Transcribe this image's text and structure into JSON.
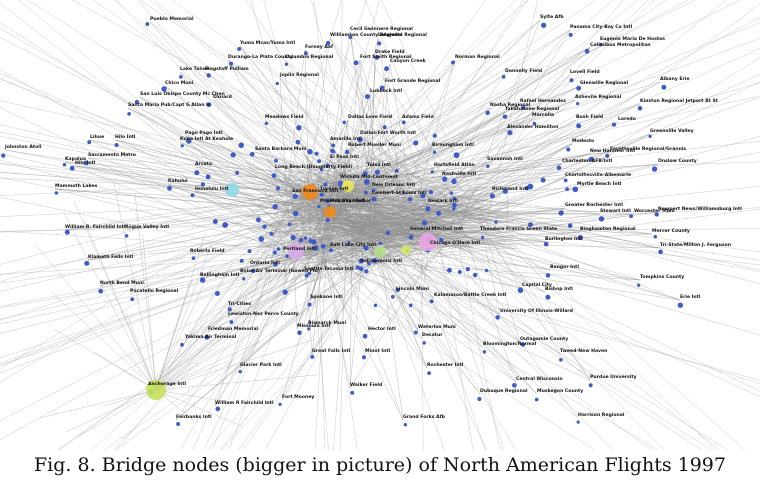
{
  "caption": "Fig. 8.  Bridge nodes (bigger in picture) of North American Flights 1997",
  "labels": [
    {
      "t": "Pueblo Memorial"
    },
    {
      "t": "Yuma Mcas/Yuma Intl"
    },
    {
      "t": "Durango-La Plata County"
    },
    {
      "t": "Columbia Regional"
    },
    {
      "t": "Forney Aaf"
    },
    {
      "t": "Williamson County Regional"
    },
    {
      "t": "Cecil Gwinnere Regional"
    },
    {
      "t": "Lafayette Regional"
    },
    {
      "t": "Drake Field"
    },
    {
      "t": "Fort Smith Regional"
    },
    {
      "t": "Canyon Creek"
    },
    {
      "t": "Norman Regional"
    },
    {
      "t": "Tallahassee Regional"
    },
    {
      "t": "Sylte Afb"
    },
    {
      "t": "Panama City-Bay Co Intl"
    },
    {
      "t": "Eugenio Maria De Hostos"
    },
    {
      "t": "Colonibus Metropolitan"
    },
    {
      "t": "Lake Tahoe"
    },
    {
      "t": "Flagstaff Pulliam"
    },
    {
      "t": "Joplin Regional"
    },
    {
      "t": "Donnelly Field"
    },
    {
      "t": "Lovell Field"
    },
    {
      "t": "Glenwille Regional"
    },
    {
      "t": "Albany Erie"
    },
    {
      "t": "Chico Muni"
    },
    {
      "t": "San Luis Obispo County Mc Chen"
    },
    {
      "t": "Santa Maria Pub/Capt G Allan H"
    },
    {
      "t": "Oxnard"
    },
    {
      "t": "Lubbock Intl"
    },
    {
      "t": "Fort Grande Regional"
    },
    {
      "t": "Rafael Hernandez"
    },
    {
      "t": "Ashevile Regional"
    },
    {
      "t": "Kinston Regional Jetport At St"
    },
    {
      "t": "Nasha Regional"
    },
    {
      "t": "Meadows Field"
    },
    {
      "t": "Dallas Love Field"
    },
    {
      "t": "Adams Field"
    },
    {
      "t": "Marcella"
    },
    {
      "t": "Bush Field"
    },
    {
      "t": "Modesto"
    },
    {
      "t": "Laredo"
    },
    {
      "t": "Johnston Atoll"
    },
    {
      "t": "Fayetteville Regional/Grannis"
    },
    {
      "t": "Pago Pago Intl"
    },
    {
      "t": "Hilo Intl"
    },
    {
      "t": "Kona Intl At Keahole"
    },
    {
      "t": "Dallas/Fort Worth Intl"
    },
    {
      "t": "Alexander Hamilton"
    },
    {
      "t": "Greenville Valley"
    },
    {
      "t": "Lihue"
    },
    {
      "t": "Santa Barbara Muni"
    },
    {
      "t": "Amarillo Intl"
    },
    {
      "t": "Robert Mueller Muni"
    },
    {
      "t": "Birmingham Intl"
    },
    {
      "t": "Savannah Intl"
    },
    {
      "t": "Kapalua"
    },
    {
      "t": "Sacramento Metro"
    },
    {
      "t": "Arcata"
    },
    {
      "t": "Tulsa Intl"
    },
    {
      "t": "El Paso Intl"
    },
    {
      "t": "Hartsfield Atlan"
    },
    {
      "t": "Nashville Intl"
    },
    {
      "t": "New Hanover Intl"
    },
    {
      "t": "Hilo Intl"
    },
    {
      "t": "Kahului"
    },
    {
      "t": "Long Beach (Daugherty Field)"
    },
    {
      "t": "Wichita Mid-Continent"
    },
    {
      "t": "Charleston AFB/Intl"
    },
    {
      "t": "Onslow County"
    },
    {
      "t": "Mammoth Lakes"
    },
    {
      "t": "Honolulu Intl"
    },
    {
      "t": "San Francisco Intl"
    },
    {
      "t": "Tucson Intl"
    },
    {
      "t": "Phoenix Sky Harbor"
    },
    {
      "t": "New Orleans Intl"
    },
    {
      "t": "Lambert-St Louis Intl"
    },
    {
      "t": "Richmond Intl"
    },
    {
      "t": "Myrtle Beach Intl"
    },
    {
      "t": "Charlottesville-Albemarle"
    },
    {
      "t": "McCarran Intl"
    },
    {
      "t": "Newark Intl"
    },
    {
      "t": "Greater Rochester Intl"
    },
    {
      "t": "Stewart Intl"
    },
    {
      "t": "Worcester Muni"
    },
    {
      "t": "Newport News/Williamsburg Intl"
    },
    {
      "t": "William R. Fairchild Intl"
    },
    {
      "t": "Rogue Valley Intl"
    },
    {
      "t": "Portland Intl"
    },
    {
      "t": "Salt Lake City Intl"
    },
    {
      "t": "General Mitchell Intl"
    },
    {
      "t": "Theodore Francis Green State"
    },
    {
      "t": "Binghamton Regional"
    },
    {
      "t": "Mercer County"
    },
    {
      "t": "Klamath Falls Intl"
    },
    {
      "t": "Roberts Field"
    },
    {
      "t": "Chicago O'Hare Intl"
    },
    {
      "t": "Burlington Intl"
    },
    {
      "t": "Tri-State/Milton J. Ferguson"
    },
    {
      "t": "Ontario Intl"
    },
    {
      "t": "Boise Air Terminal (Gowen Fld)"
    },
    {
      "t": "Seattle-Tacoma Intl"
    },
    {
      "t": "Bellingham Intl"
    },
    {
      "t": "Indianapolis Intl"
    },
    {
      "t": "Bangor Intl"
    },
    {
      "t": "Tompkins County"
    },
    {
      "t": "North Bend Muni"
    },
    {
      "t": "Pocatello Regional"
    },
    {
      "t": "Spokane Intl"
    },
    {
      "t": "Lincoln Muni"
    },
    {
      "t": "Kalamazoo/Battle Creek Intl"
    },
    {
      "t": "Bishop Intl"
    },
    {
      "t": "Erie Intl"
    },
    {
      "t": "Capital City"
    },
    {
      "t": "Tri-Cities"
    },
    {
      "t": "Lewiston-Nez Perce County"
    },
    {
      "t": "University Of Illinois-Willard"
    },
    {
      "t": "Friedman Memorial"
    },
    {
      "t": "Missoula Intl"
    },
    {
      "t": "Bismarck Muni"
    },
    {
      "t": "Hector Intl"
    },
    {
      "t": "Waterloo Muni"
    },
    {
      "t": "Decatur"
    },
    {
      "t": "Outagamie County"
    },
    {
      "t": "Tweed-New Haven"
    },
    {
      "t": "Yakima Air Terminal"
    },
    {
      "t": "Great Falls Intl"
    },
    {
      "t": "Minot Intl"
    },
    {
      "t": "Bloomington/Normal"
    },
    {
      "t": "Glacier Park Intl"
    },
    {
      "t": "Rochester Intl"
    },
    {
      "t": "Central Wisconsin"
    },
    {
      "t": "Purdue University"
    },
    {
      "t": "Anchorage Intl"
    },
    {
      "t": "Walker Field"
    },
    {
      "t": "Dubuque Regional"
    },
    {
      "t": "Muskegon County"
    },
    {
      "t": "William R Fairchild Intl"
    },
    {
      "t": "Fort Mooney"
    },
    {
      "t": "Fairbanks Intl"
    },
    {
      "t": "Grand Forks Afb"
    },
    {
      "t": "Harrison Regional"
    }
  ],
  "highlight_colors": [
    "#8fd8e6",
    "#f08a1c",
    "#c7e05c",
    "#d9a8e8",
    "#e8e55a",
    "#b8e08a",
    "#e9a4e2",
    "#d8e86a"
  ]
}
